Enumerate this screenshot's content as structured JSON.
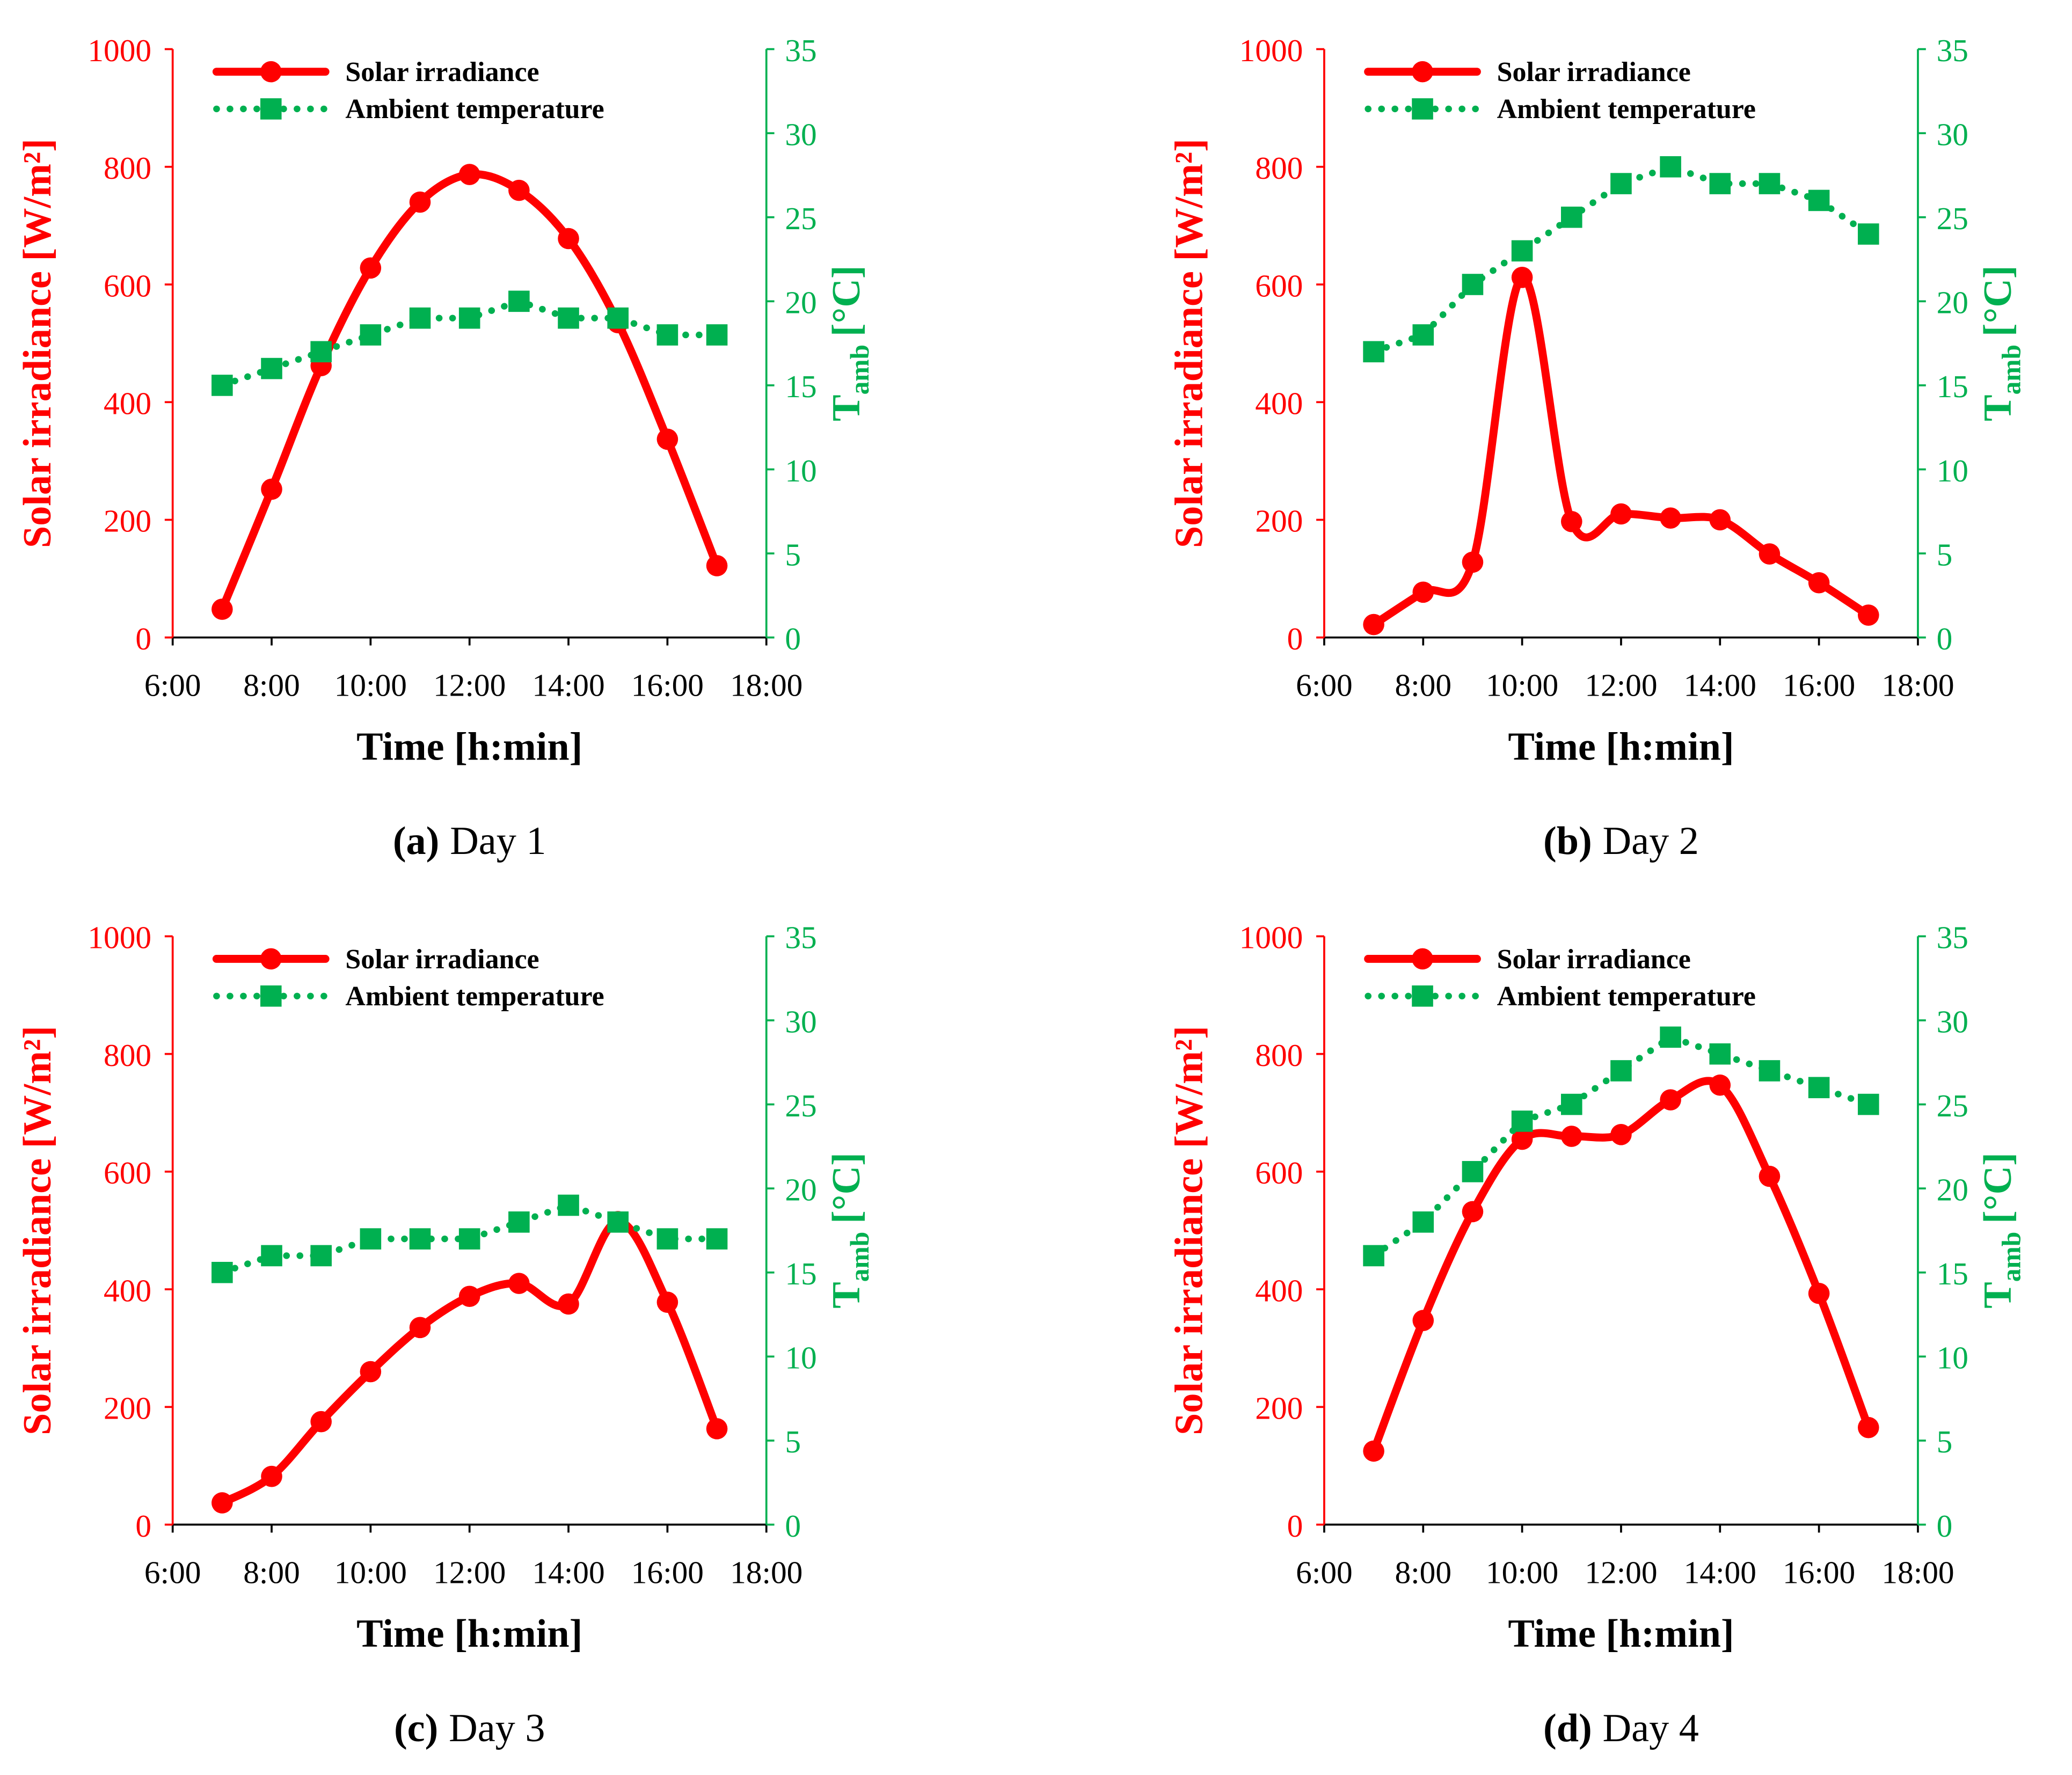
{
  "chart_data": [
    {
      "type": "line",
      "panel": "(a)",
      "caption": "Day 1",
      "xlabel": "Time [h:min]",
      "ylabel": "Solar irradiance [W/m²]",
      "y2label": {
        "main": "T",
        "sub": "amb",
        "unit": "[°C]"
      },
      "x": [
        7,
        8,
        9,
        10,
        11,
        12,
        13,
        14,
        15,
        16,
        17
      ],
      "xlim": [
        6,
        18
      ],
      "xticks": [
        {
          "value": 6,
          "label": "6:00"
        },
        {
          "value": 8,
          "label": "8:00"
        },
        {
          "value": 10,
          "label": "10:00"
        },
        {
          "value": 12,
          "label": "12:00"
        },
        {
          "value": 14,
          "label": "14:00"
        },
        {
          "value": 16,
          "label": "16:00"
        },
        {
          "value": 18,
          "label": "18:00"
        }
      ],
      "ylim": [
        0,
        1000
      ],
      "yticks": [
        0,
        200,
        400,
        600,
        800,
        1000
      ],
      "y2lim": [
        0,
        35
      ],
      "y2ticks": [
        0,
        5,
        10,
        15,
        20,
        25,
        30,
        35
      ],
      "series": [
        {
          "name": "Solar irradiance",
          "color": "#ff0000",
          "values": [
            48,
            252,
            462,
            628,
            740,
            787,
            760,
            678,
            535,
            337,
            122
          ]
        },
        {
          "name": "Ambient temperature",
          "color": "#00b050",
          "axis": "y2",
          "values": [
            15,
            16,
            17,
            18,
            19,
            19,
            20,
            19,
            19,
            18,
            18
          ]
        }
      ]
    },
    {
      "type": "line",
      "panel": "(b)",
      "caption": "Day 2",
      "xlabel": "Time [h:min]",
      "ylabel": "Solar irradiance [W/m²]",
      "y2label": {
        "main": "T",
        "sub": "amb",
        "unit": "[°C]"
      },
      "x": [
        7,
        8,
        9,
        10,
        11,
        12,
        13,
        14,
        15,
        16,
        17
      ],
      "xlim": [
        6,
        18
      ],
      "xticks": [
        {
          "value": 6,
          "label": "6:00"
        },
        {
          "value": 8,
          "label": "8:00"
        },
        {
          "value": 10,
          "label": "10:00"
        },
        {
          "value": 12,
          "label": "12:00"
        },
        {
          "value": 14,
          "label": "14:00"
        },
        {
          "value": 16,
          "label": "16:00"
        },
        {
          "value": 18,
          "label": "18:00"
        }
      ],
      "ylim": [
        0,
        1000
      ],
      "yticks": [
        0,
        200,
        400,
        600,
        800,
        1000
      ],
      "y2lim": [
        0,
        35
      ],
      "y2ticks": [
        0,
        5,
        10,
        15,
        20,
        25,
        30,
        35
      ],
      "series": [
        {
          "name": "Solar irradiance",
          "color": "#ff0000",
          "values": [
            22,
            77,
            128,
            612,
            197,
            210,
            203,
            200,
            142,
            93,
            38
          ]
        },
        {
          "name": "Ambient temperature",
          "color": "#00b050",
          "axis": "y2",
          "values": [
            17,
            18,
            21,
            23,
            25,
            27,
            28,
            27,
            27,
            26,
            24
          ]
        }
      ]
    },
    {
      "type": "line",
      "panel": "(c)",
      "caption": "Day 3",
      "xlabel": "Time [h:min]",
      "ylabel": "Solar irradiance [W/m²]",
      "y2label": {
        "main": "T",
        "sub": "amb",
        "unit": "[°C]"
      },
      "x": [
        7,
        8,
        9,
        10,
        11,
        12,
        13,
        14,
        15,
        16,
        17
      ],
      "xlim": [
        6,
        18
      ],
      "xticks": [
        {
          "value": 6,
          "label": "6:00"
        },
        {
          "value": 8,
          "label": "8:00"
        },
        {
          "value": 10,
          "label": "10:00"
        },
        {
          "value": 12,
          "label": "12:00"
        },
        {
          "value": 14,
          "label": "14:00"
        },
        {
          "value": 16,
          "label": "16:00"
        },
        {
          "value": 18,
          "label": "18:00"
        }
      ],
      "ylim": [
        0,
        1000
      ],
      "yticks": [
        0,
        200,
        400,
        600,
        800,
        1000
      ],
      "y2lim": [
        0,
        35
      ],
      "y2ticks": [
        0,
        5,
        10,
        15,
        20,
        25,
        30,
        35
      ],
      "series": [
        {
          "name": "Solar irradiance",
          "color": "#ff0000",
          "values": [
            37,
            82,
            175,
            260,
            335,
            388,
            410,
            375,
            515,
            378,
            163
          ]
        },
        {
          "name": "Ambient temperature",
          "color": "#00b050",
          "axis": "y2",
          "values": [
            15,
            16,
            16,
            17,
            17,
            17,
            18,
            19,
            18,
            17,
            17
          ]
        }
      ]
    },
    {
      "type": "line",
      "panel": "(d)",
      "caption": "Day 4",
      "xlabel": "Time [h:min]",
      "ylabel": "Solar irradiance [W/m²]",
      "y2label": {
        "main": "T",
        "sub": "amb",
        "unit": "[°C]"
      },
      "x": [
        7,
        8,
        9,
        10,
        11,
        12,
        13,
        14,
        15,
        16,
        17
      ],
      "xlim": [
        6,
        18
      ],
      "xticks": [
        {
          "value": 6,
          "label": "6:00"
        },
        {
          "value": 8,
          "label": "8:00"
        },
        {
          "value": 10,
          "label": "10:00"
        },
        {
          "value": 12,
          "label": "12:00"
        },
        {
          "value": 14,
          "label": "14:00"
        },
        {
          "value": 16,
          "label": "16:00"
        },
        {
          "value": 18,
          "label": "18:00"
        }
      ],
      "ylim": [
        0,
        1000
      ],
      "yticks": [
        0,
        200,
        400,
        600,
        800,
        1000
      ],
      "y2lim": [
        0,
        35
      ],
      "y2ticks": [
        0,
        5,
        10,
        15,
        20,
        25,
        30,
        35
      ],
      "series": [
        {
          "name": "Solar irradiance",
          "color": "#ff0000",
          "values": [
            125,
            347,
            532,
            655,
            660,
            663,
            722,
            747,
            592,
            393,
            165
          ]
        },
        {
          "name": "Ambient temperature",
          "color": "#00b050",
          "axis": "y2",
          "values": [
            16,
            18,
            21,
            24,
            25,
            27,
            29,
            28,
            27,
            26,
            25
          ]
        }
      ]
    }
  ]
}
